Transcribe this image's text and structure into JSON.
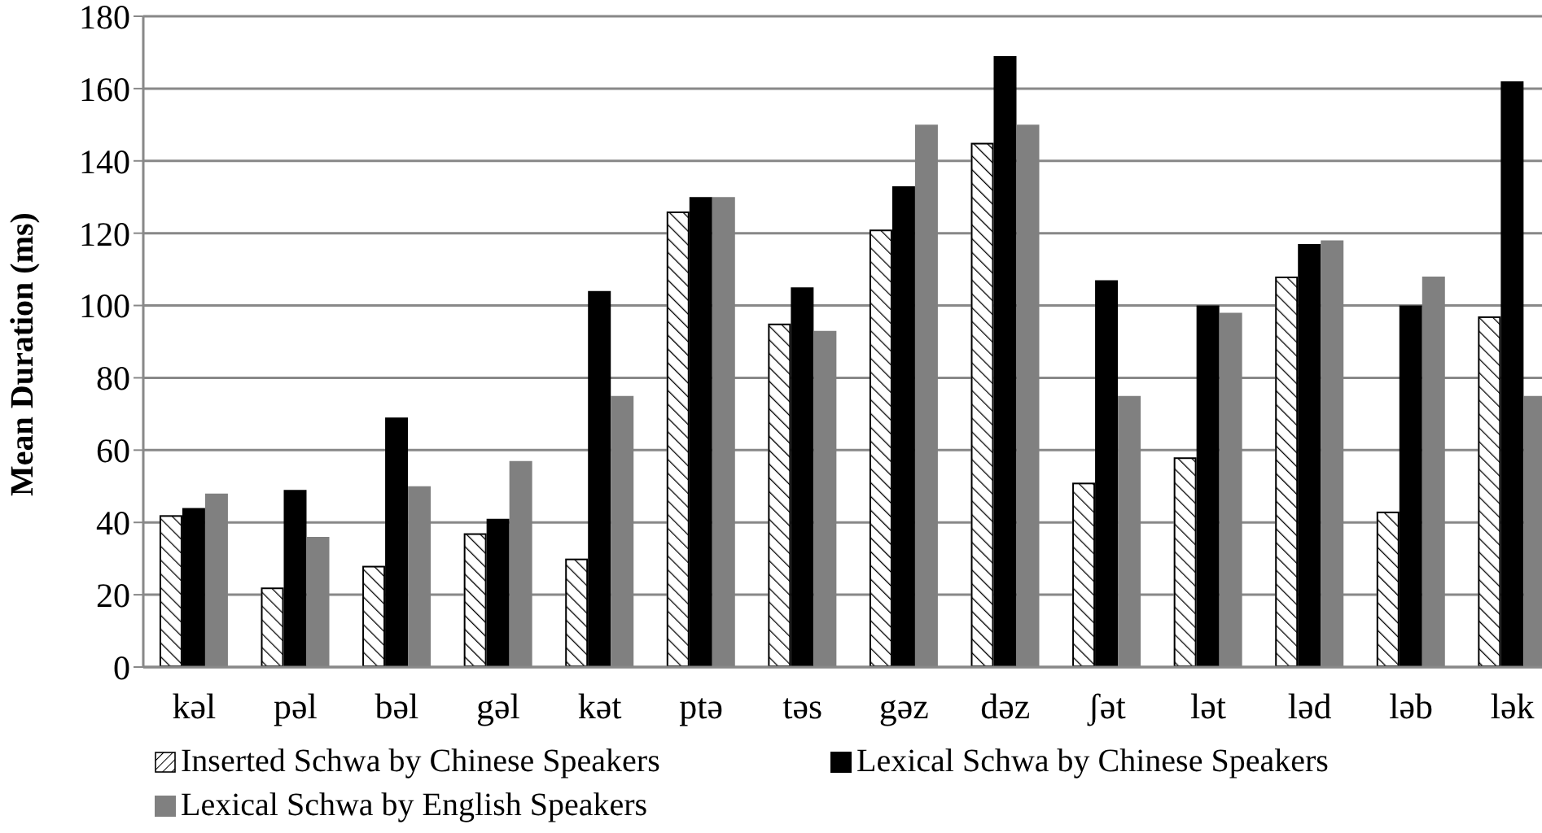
{
  "chart_data": {
    "type": "bar",
    "ylabel": "Mean Duration (ms)",
    "categories": [
      "kəl",
      "pəl",
      "bəl",
      "gəl",
      "kət",
      "ptə",
      "təs",
      "gəz",
      "dəz",
      "ʃət",
      "lət",
      "ləd",
      "ləb",
      "lək"
    ],
    "series": [
      {
        "name": "Inserted Schwa by Chinese Speakers",
        "color": "#ffffff",
        "values": [
          42,
          22,
          28,
          37,
          30,
          126,
          95,
          121,
          145,
          51,
          58,
          108,
          43,
          97
        ]
      },
      {
        "name": "Lexical Schwa by Chinese Speakers",
        "color": "#000000",
        "values": [
          44,
          49,
          69,
          41,
          104,
          130,
          105,
          133,
          169,
          107,
          100,
          117,
          100,
          162
        ]
      },
      {
        "name": "Lexical Schwa by English Speakers",
        "color": "#808080",
        "values": [
          48,
          36,
          50,
          57,
          75,
          130,
          93,
          150,
          150,
          75,
          98,
          118,
          108,
          75
        ]
      }
    ],
    "ylim": [
      0,
      180
    ],
    "yticks": [
      0,
      20,
      40,
      60,
      80,
      100,
      120,
      140,
      160,
      180
    ],
    "grid": "y",
    "legend": "bottom"
  }
}
